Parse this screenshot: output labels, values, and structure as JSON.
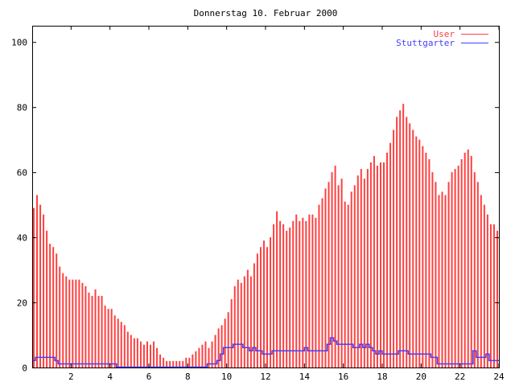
{
  "chart_data": {
    "type": "bar",
    "title": "Donnerstag 10. Februar 2000",
    "xlabel": "",
    "ylabel": "",
    "xlim": [
      0,
      24
    ],
    "ylim": [
      0,
      105
    ],
    "x_ticks": [
      "2",
      "4",
      "6",
      "8",
      "10",
      "12",
      "14",
      "16",
      "18",
      "20",
      "22",
      "24"
    ],
    "y_ticks": [
      "0",
      "20",
      "40",
      "60",
      "80",
      "100"
    ],
    "grid": false,
    "legend": "top-right",
    "x_step_hours": 0.16667,
    "series": [
      {
        "name": "User",
        "style": "impulses",
        "color": "#ff4040",
        "values": [
          49,
          53,
          50,
          47,
          42,
          38,
          37,
          35,
          31,
          29,
          28,
          27,
          27,
          27,
          27,
          26,
          25,
          23,
          22,
          24,
          22,
          22,
          19,
          18,
          18,
          16,
          15,
          14,
          13,
          11,
          10,
          9,
          9,
          8,
          7,
          8,
          7,
          8,
          6,
          4,
          3,
          2,
          2,
          2,
          2,
          2,
          2,
          3,
          3,
          4,
          5,
          6,
          7,
          8,
          6,
          8,
          10,
          12,
          13,
          15,
          17,
          21,
          25,
          27,
          26,
          28,
          30,
          28,
          32,
          35,
          37,
          39,
          37,
          40,
          44,
          48,
          45,
          44,
          42,
          43,
          45,
          47,
          45,
          46,
          45,
          47,
          47,
          46,
          50,
          52,
          55,
          57,
          60,
          62,
          56,
          58,
          51,
          50,
          54,
          56,
          59,
          61,
          58,
          61,
          63,
          65,
          62,
          63,
          63,
          66,
          69,
          73,
          77,
          79,
          81,
          77,
          75,
          73,
          71,
          70,
          68,
          66,
          64,
          60,
          57,
          53,
          54,
          53,
          57,
          60,
          61,
          62,
          64,
          66,
          67,
          65,
          60,
          57,
          53,
          50,
          47,
          44,
          44,
          42
        ]
      },
      {
        "name": "Stuttgarter",
        "style": "steps",
        "color": "#4040ff",
        "values": [
          2,
          3,
          3,
          3,
          3,
          3,
          3,
          2,
          1,
          1,
          1,
          1,
          1,
          1,
          1,
          1,
          1,
          1,
          1,
          1,
          1,
          1,
          1,
          1,
          1,
          1,
          0,
          0,
          0,
          0,
          0,
          0,
          0,
          0,
          0,
          0,
          0,
          0,
          0,
          0,
          0,
          0,
          0,
          0,
          0,
          0,
          0,
          0,
          0,
          0,
          0,
          0,
          0,
          0,
          1,
          1,
          1,
          2,
          4,
          6,
          6,
          6,
          7,
          7,
          7,
          6,
          6,
          5,
          6,
          5,
          5,
          4,
          4,
          4,
          5,
          5,
          5,
          5,
          5,
          5,
          5,
          5,
          5,
          5,
          6,
          5,
          5,
          5,
          5,
          5,
          5,
          7,
          9,
          8,
          7,
          7,
          7,
          7,
          7,
          6,
          6,
          7,
          6,
          7,
          6,
          5,
          4,
          5,
          4,
          4,
          4,
          4,
          4,
          5,
          5,
          5,
          4,
          4,
          4,
          4,
          4,
          4,
          4,
          3,
          3,
          1,
          1,
          1,
          1,
          1,
          1,
          1,
          1,
          1,
          1,
          1,
          5,
          3,
          3,
          3,
          4,
          2,
          2,
          2
        ]
      }
    ]
  }
}
